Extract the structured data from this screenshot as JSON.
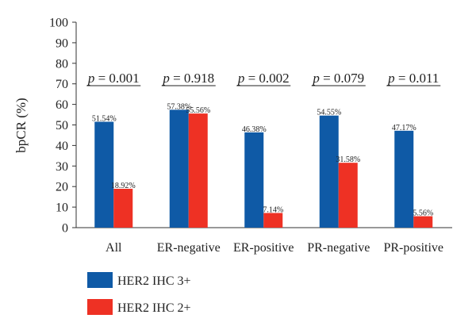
{
  "chart_data": {
    "type": "bar",
    "title": "",
    "xlabel": "",
    "ylabel": "bpCR (%)",
    "ylim": [
      0,
      100
    ],
    "yticks": [
      0,
      10,
      20,
      30,
      40,
      50,
      60,
      70,
      80,
      90,
      100
    ],
    "grid": false,
    "legend_position": "bottom-left",
    "categories": [
      "All",
      "ER-negative",
      "ER-positive",
      "PR-negative",
      "PR-positive"
    ],
    "series": [
      {
        "name": "HER2 IHC 3+",
        "color": "#0f5aa6",
        "values": [
          51.54,
          57.38,
          46.38,
          54.55,
          47.17
        ],
        "labels": [
          "51.54%",
          "57.38%",
          "46.38%",
          "54.55%",
          "47.17%"
        ]
      },
      {
        "name": "HER2 IHC 2+",
        "color": "#ee3124",
        "values": [
          18.92,
          55.56,
          7.14,
          31.58,
          5.56
        ],
        "labels": [
          "18.92%",
          "55.56%",
          "7.14%",
          "31.58%",
          "5.56%"
        ]
      }
    ],
    "annotations": [
      {
        "category": "All",
        "prefix": "p",
        "text": " = 0.001"
      },
      {
        "category": "ER-negative",
        "prefix": "p",
        "text": " = 0.918"
      },
      {
        "category": "ER-positive",
        "prefix": "p",
        "text": " = 0.002"
      },
      {
        "category": "PR-negative",
        "prefix": "p",
        "text": " = 0.079"
      },
      {
        "category": "PR-positive",
        "prefix": "p",
        "text": " = 0.011"
      }
    ]
  }
}
